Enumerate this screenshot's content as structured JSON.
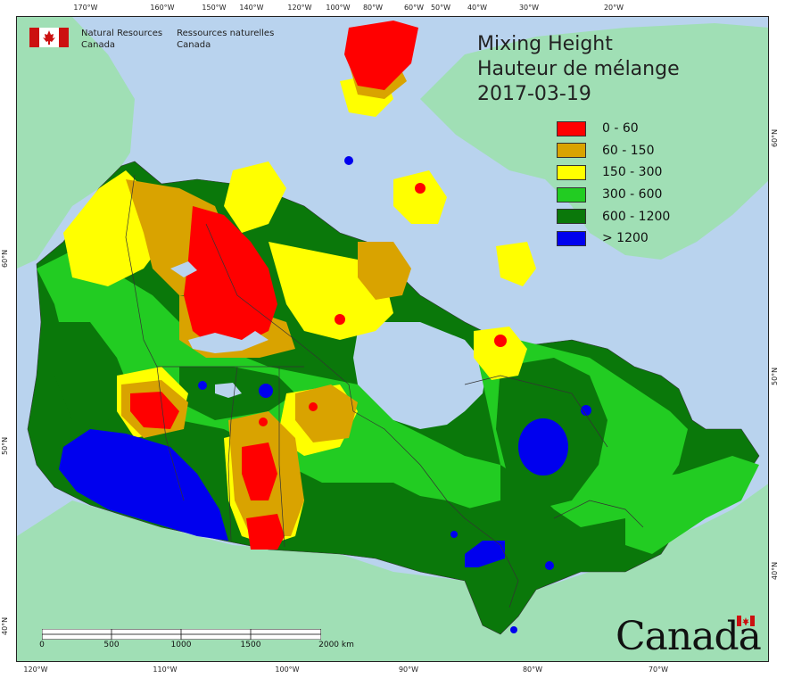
{
  "title": {
    "line1": "Mixing Height",
    "line2": "Hauteur de mélange",
    "date": "2017-03-19"
  },
  "agency": {
    "en_line1": "Natural Resources",
    "en_line2": "Canada",
    "fr_line1": "Ressources naturelles",
    "fr_line2": "Canada",
    "logo_icon": "canada-flag-icon"
  },
  "legend": [
    {
      "label": "0 - 60",
      "color": "#ff0000"
    },
    {
      "label": "60 - 150",
      "color": "#d9a300"
    },
    {
      "label": "150 - 300",
      "color": "#ffff00"
    },
    {
      "label": "300 - 600",
      "color": "#22cc22"
    },
    {
      "label": "600 - 1200",
      "color": "#0a780a"
    },
    {
      "label": "> 1200",
      "color": "#0000ee"
    }
  ],
  "graticule": {
    "top": [
      "170°W",
      "160°W",
      "150°W",
      "140°W",
      "120°W",
      "100°W",
      "80°W",
      "60°W",
      "50°W",
      "40°W",
      "30°W",
      "20°W"
    ],
    "bottom": [
      "120°W",
      "110°W",
      "100°W",
      "90°W",
      "80°W",
      "70°W"
    ],
    "left": [
      "60°N",
      "50°N",
      "40°N"
    ],
    "right": [
      "60°N",
      "50°N",
      "40°N"
    ]
  },
  "scale": {
    "labels": [
      "0",
      "500",
      "1000",
      "1500",
      "2000  km"
    ]
  },
  "wordmark": "Canada",
  "colors": {
    "ocean": "#b9d3ee",
    "land_other": "#a0dfb5",
    "border": "#333333"
  }
}
